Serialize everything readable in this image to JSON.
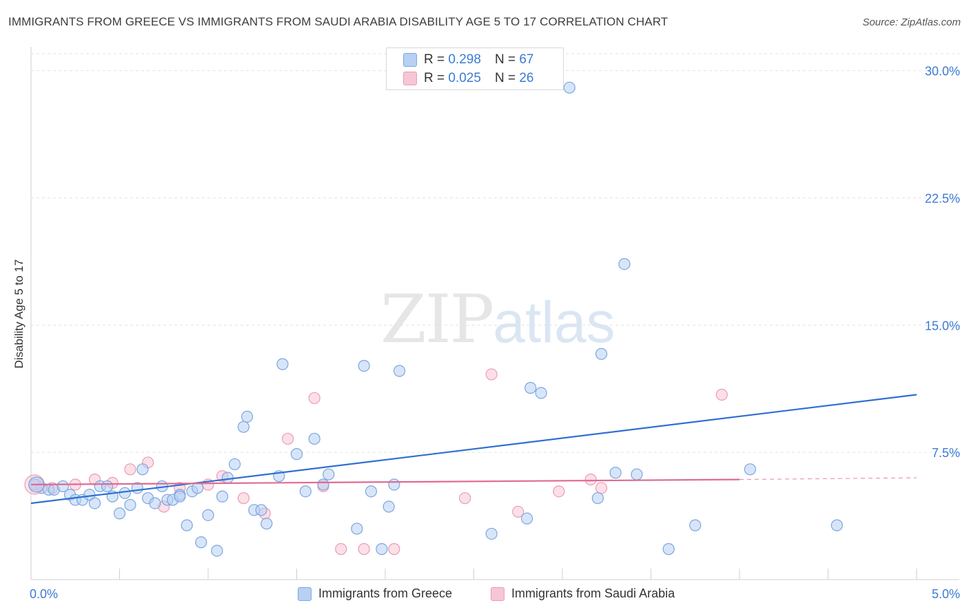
{
  "title": "IMMIGRANTS FROM GREECE VS IMMIGRANTS FROM SAUDI ARABIA DISABILITY AGE 5 TO 17 CORRELATION CHART",
  "source": "Source: ZipAtlas.com",
  "watermark": {
    "zip": "ZIP",
    "atlas": "atlas"
  },
  "legend": {
    "rows": [
      {
        "r_label": "R = ",
        "r_value": "0.298",
        "n_label": "N = ",
        "n_value": "67"
      },
      {
        "r_label": "R = ",
        "r_value": "0.025",
        "n_label": "N = ",
        "n_value": "26"
      }
    ]
  },
  "colors": {
    "greece_fill": "#b8d0f3",
    "greece_stroke": "#7aa6e0",
    "greece_line": "#2f6fd0",
    "saudi_fill": "#f7c6d5",
    "saudi_stroke": "#ec9ab4",
    "saudi_line": "#e06a93",
    "axis_text": "#3a7bd5",
    "grid": "#e2e2e2"
  },
  "chart_data": {
    "type": "scatter",
    "title": "IMMIGRANTS FROM GREECE VS IMMIGRANTS FROM SAUDI ARABIA DISABILITY AGE 5 TO 17 CORRELATION CHART",
    "xlabel": "",
    "ylabel": "Disability Age 5 to 17",
    "xlim": [
      0,
      5
    ],
    "ylim": [
      0,
      31
    ],
    "x_tick_labels": [
      "0.0%",
      "5.0%"
    ],
    "y_ticks": [
      7.5,
      15.0,
      22.5,
      30.0
    ],
    "y_tick_labels": [
      "7.5%",
      "15.0%",
      "22.5%",
      "30.0%"
    ],
    "series": [
      {
        "name": "Immigrants from Greece",
        "R": 0.298,
        "N": 67,
        "trend": {
          "x": [
            0,
            5
          ],
          "y": [
            4.5,
            10.9
          ]
        },
        "points": [
          {
            "x": 0.02,
            "y": 5.6
          },
          {
            "x": 0.06,
            "y": 5.4
          },
          {
            "x": 0.1,
            "y": 5.3
          },
          {
            "x": 0.13,
            "y": 5.3
          },
          {
            "x": 0.18,
            "y": 5.5
          },
          {
            "x": 0.22,
            "y": 5.0
          },
          {
            "x": 0.25,
            "y": 4.7
          },
          {
            "x": 0.29,
            "y": 4.7
          },
          {
            "x": 0.33,
            "y": 5.0
          },
          {
            "x": 0.36,
            "y": 4.5
          },
          {
            "x": 0.39,
            "y": 5.5
          },
          {
            "x": 0.43,
            "y": 5.5
          },
          {
            "x": 0.46,
            "y": 4.9
          },
          {
            "x": 0.5,
            "y": 3.9
          },
          {
            "x": 0.53,
            "y": 5.1
          },
          {
            "x": 0.56,
            "y": 4.4
          },
          {
            "x": 0.6,
            "y": 5.4
          },
          {
            "x": 0.63,
            "y": 6.5
          },
          {
            "x": 0.66,
            "y": 4.8
          },
          {
            "x": 0.7,
            "y": 4.5
          },
          {
            "x": 0.74,
            "y": 5.5
          },
          {
            "x": 0.77,
            "y": 4.7
          },
          {
            "x": 0.8,
            "y": 4.7
          },
          {
            "x": 0.84,
            "y": 5.0
          },
          {
            "x": 0.88,
            "y": 3.2
          },
          {
            "x": 0.91,
            "y": 5.2
          },
          {
            "x": 0.94,
            "y": 5.4
          },
          {
            "x": 0.96,
            "y": 2.2
          },
          {
            "x": 1.0,
            "y": 3.8
          },
          {
            "x": 1.05,
            "y": 1.7
          },
          {
            "x": 1.08,
            "y": 4.9
          },
          {
            "x": 1.11,
            "y": 6.0
          },
          {
            "x": 1.15,
            "y": 6.8
          },
          {
            "x": 1.2,
            "y": 9.0
          },
          {
            "x": 1.22,
            "y": 9.6
          },
          {
            "x": 1.26,
            "y": 4.1
          },
          {
            "x": 1.3,
            "y": 4.1
          },
          {
            "x": 1.33,
            "y": 3.3
          },
          {
            "x": 1.4,
            "y": 6.1
          },
          {
            "x": 1.42,
            "y": 12.7
          },
          {
            "x": 1.5,
            "y": 7.4
          },
          {
            "x": 1.55,
            "y": 5.2
          },
          {
            "x": 1.6,
            "y": 8.3
          },
          {
            "x": 1.65,
            "y": 5.6
          },
          {
            "x": 1.68,
            "y": 6.2
          },
          {
            "x": 1.84,
            "y": 3.0
          },
          {
            "x": 1.88,
            "y": 12.6
          },
          {
            "x": 1.92,
            "y": 5.2
          },
          {
            "x": 1.98,
            "y": 1.8
          },
          {
            "x": 2.02,
            "y": 4.3
          },
          {
            "x": 2.05,
            "y": 5.6
          },
          {
            "x": 2.08,
            "y": 12.3
          },
          {
            "x": 2.6,
            "y": 2.7
          },
          {
            "x": 2.8,
            "y": 3.6
          },
          {
            "x": 2.82,
            "y": 11.3
          },
          {
            "x": 2.88,
            "y": 11.0
          },
          {
            "x": 3.2,
            "y": 4.8
          },
          {
            "x": 3.22,
            "y": 13.3
          },
          {
            "x": 3.3,
            "y": 6.3
          },
          {
            "x": 3.35,
            "y": 18.6
          },
          {
            "x": 3.42,
            "y": 6.2
          },
          {
            "x": 3.6,
            "y": 1.8
          },
          {
            "x": 3.75,
            "y": 3.2
          },
          {
            "x": 4.06,
            "y": 6.5
          },
          {
            "x": 4.55,
            "y": 3.2
          },
          {
            "x": 3.04,
            "y": 29.0
          },
          {
            "x": 0.84,
            "y": 4.9
          }
        ]
      },
      {
        "name": "Immigrants from Saudi Arabia",
        "R": 0.025,
        "N": 26,
        "trend": {
          "x": [
            0,
            4.0
          ],
          "y": [
            5.6,
            5.9
          ],
          "dashed_to": {
            "x": 5.0,
            "y": 6.0
          }
        },
        "points": [
          {
            "x": 0.03,
            "y": 5.6
          },
          {
            "x": 0.12,
            "y": 5.4
          },
          {
            "x": 0.25,
            "y": 5.6
          },
          {
            "x": 0.36,
            "y": 5.9
          },
          {
            "x": 0.46,
            "y": 5.7
          },
          {
            "x": 0.56,
            "y": 6.5
          },
          {
            "x": 0.66,
            "y": 6.9
          },
          {
            "x": 0.75,
            "y": 4.3
          },
          {
            "x": 0.84,
            "y": 5.4
          },
          {
            "x": 1.0,
            "y": 5.6
          },
          {
            "x": 1.08,
            "y": 6.1
          },
          {
            "x": 1.2,
            "y": 4.8
          },
          {
            "x": 1.32,
            "y": 3.9
          },
          {
            "x": 1.45,
            "y": 8.3
          },
          {
            "x": 1.6,
            "y": 10.7
          },
          {
            "x": 1.65,
            "y": 5.5
          },
          {
            "x": 1.75,
            "y": 1.8
          },
          {
            "x": 1.88,
            "y": 1.8
          },
          {
            "x": 2.05,
            "y": 1.8
          },
          {
            "x": 2.45,
            "y": 4.8
          },
          {
            "x": 2.6,
            "y": 12.1
          },
          {
            "x": 2.75,
            "y": 4.0
          },
          {
            "x": 2.98,
            "y": 5.2
          },
          {
            "x": 3.16,
            "y": 5.9
          },
          {
            "x": 3.22,
            "y": 5.4
          },
          {
            "x": 3.9,
            "y": 10.9
          }
        ]
      }
    ]
  },
  "bottom_legend": [
    {
      "label": "Immigrants from Greece"
    },
    {
      "label": "Immigrants from Saudi Arabia"
    }
  ]
}
